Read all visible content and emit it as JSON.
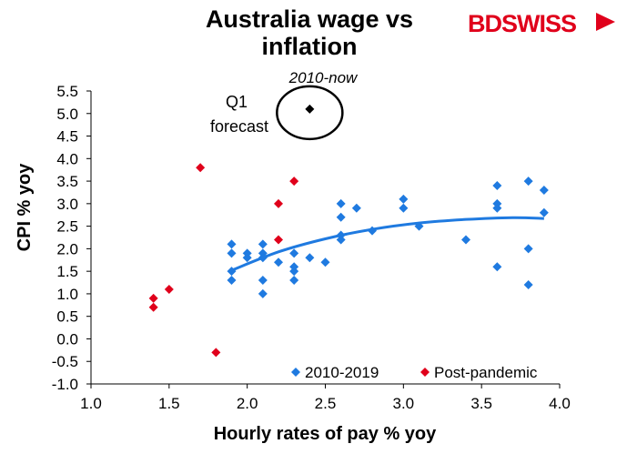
{
  "logo": {
    "text": "BDSWISS"
  },
  "chart_data": {
    "type": "scatter",
    "title_line1": "Australia wage vs",
    "title_line2": "inflation",
    "subtitle": "2010-now",
    "xlabel": "Hourly rates of pay % yoy",
    "ylabel": "CPI % yoy",
    "xlim": [
      1.0,
      4.0
    ],
    "ylim": [
      -1.0,
      5.5
    ],
    "x_ticks": [
      "1.0",
      "1.5",
      "2.0",
      "2.5",
      "3.0",
      "3.5",
      "4.0"
    ],
    "y_ticks": [
      "-1.0",
      "-0.5",
      "0.0",
      "0.5",
      "1.0",
      "1.5",
      "2.0",
      "2.5",
      "3.0",
      "3.5",
      "4.0",
      "4.5",
      "5.0",
      "5.5"
    ],
    "legend": "bottom-right",
    "series": [
      {
        "name": "2010-2019",
        "color": "#1f7ae0",
        "points": [
          [
            1.9,
            2.1
          ],
          [
            1.9,
            1.9
          ],
          [
            1.9,
            1.5
          ],
          [
            1.9,
            1.3
          ],
          [
            2.0,
            1.9
          ],
          [
            2.0,
            1.8
          ],
          [
            2.1,
            2.1
          ],
          [
            2.1,
            1.9
          ],
          [
            2.1,
            1.8
          ],
          [
            2.1,
            1.3
          ],
          [
            2.1,
            1.0
          ],
          [
            2.2,
            1.7
          ],
          [
            2.3,
            1.9
          ],
          [
            2.3,
            1.6
          ],
          [
            2.3,
            1.5
          ],
          [
            2.3,
            1.3
          ],
          [
            2.4,
            1.8
          ],
          [
            2.5,
            1.7
          ],
          [
            2.6,
            3.0
          ],
          [
            2.6,
            2.7
          ],
          [
            2.6,
            2.3
          ],
          [
            2.6,
            2.2
          ],
          [
            2.7,
            2.9
          ],
          [
            2.8,
            2.4
          ],
          [
            3.0,
            3.1
          ],
          [
            3.0,
            2.9
          ],
          [
            3.1,
            2.5
          ],
          [
            3.4,
            2.2
          ],
          [
            3.6,
            3.4
          ],
          [
            3.6,
            3.0
          ],
          [
            3.6,
            2.9
          ],
          [
            3.6,
            1.6
          ],
          [
            3.8,
            3.5
          ],
          [
            3.8,
            2.0
          ],
          [
            3.8,
            1.2
          ],
          [
            3.9,
            3.3
          ],
          [
            3.9,
            2.8
          ]
        ]
      },
      {
        "name": "Post-pandemic",
        "color": "#e0001b",
        "points": [
          [
            1.4,
            0.9
          ],
          [
            1.4,
            0.7
          ],
          [
            1.5,
            1.1
          ],
          [
            1.7,
            3.8
          ],
          [
            1.8,
            -0.3
          ],
          [
            2.2,
            3.0
          ],
          [
            2.2,
            2.2
          ],
          [
            2.3,
            3.5
          ]
        ]
      }
    ],
    "trendline": {
      "color": "#1f7ae0",
      "points": [
        [
          1.9,
          1.52
        ],
        [
          2.2,
          1.93
        ],
        [
          2.5,
          2.22
        ],
        [
          2.8,
          2.43
        ],
        [
          3.1,
          2.57
        ],
        [
          3.4,
          2.65
        ],
        [
          3.7,
          2.69
        ],
        [
          3.9,
          2.67
        ]
      ]
    },
    "forecast": {
      "label_line1": "Q1",
      "label_line2": "forecast",
      "point": [
        2.4,
        5.1
      ],
      "color": "#000000"
    }
  }
}
